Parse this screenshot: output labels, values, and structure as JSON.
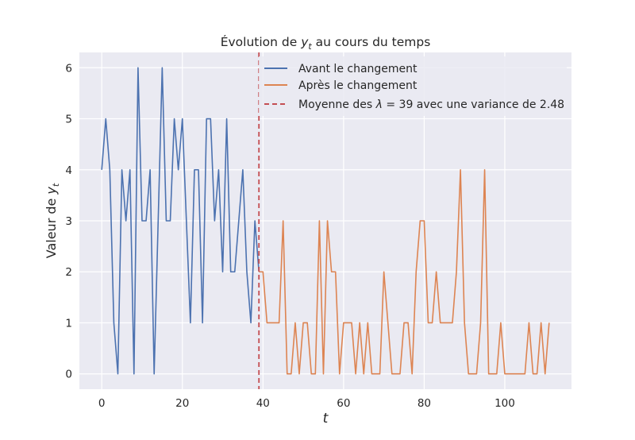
{
  "chart_data": {
    "type": "line",
    "title": {
      "prefix": "Évolution de ",
      "var": "y",
      "sub": "t",
      "suffix": " au cours du temps"
    },
    "xlabel": "t",
    "ylabel": {
      "prefix": "Valeur de ",
      "var": "y",
      "sub": "t"
    },
    "xlim": [
      -5.55,
      116.55
    ],
    "ylim": [
      -0.3,
      6.3
    ],
    "xticks": [
      0,
      20,
      40,
      60,
      80,
      100
    ],
    "yticks": [
      0,
      1,
      2,
      3,
      4,
      5,
      6
    ],
    "grid": true,
    "legend_placement": "top-right",
    "changepoint": 39,
    "series": [
      {
        "name": "Avant le changement",
        "color": "#4c72b0",
        "x_start": 0,
        "values": [
          4,
          5,
          4,
          1,
          0,
          4,
          3,
          4,
          0,
          6,
          3,
          3,
          4,
          0,
          3,
          6,
          3,
          3,
          5,
          4,
          5,
          3,
          1,
          4,
          4,
          1,
          5,
          5,
          3,
          4,
          2,
          5,
          2,
          2,
          3,
          4,
          2,
          1,
          3,
          2
        ]
      },
      {
        "name": "Après le changement",
        "color": "#dd8452",
        "x_start": 39,
        "values": [
          2,
          2,
          1,
          1,
          1,
          1,
          3,
          0,
          0,
          1,
          0,
          1,
          1,
          0,
          0,
          3,
          0,
          3,
          2,
          2,
          0,
          1,
          1,
          1,
          0,
          1,
          0,
          1,
          0,
          0,
          0,
          2,
          1,
          0,
          0,
          0,
          1,
          1,
          0,
          2,
          3,
          3,
          1,
          1,
          2,
          1,
          1,
          1,
          1,
          2,
          4,
          1,
          0,
          0,
          0,
          1,
          4,
          0,
          0,
          0,
          1,
          0,
          0,
          0,
          0,
          0,
          0,
          1,
          0,
          0,
          1,
          0,
          1
        ]
      }
    ],
    "vline": {
      "x": 39,
      "color": "#c44e52",
      "label": {
        "prefix": "Moyenne des ",
        "var": "λ",
        "suffix": " = 39 avec une variance de 2.48"
      }
    }
  }
}
